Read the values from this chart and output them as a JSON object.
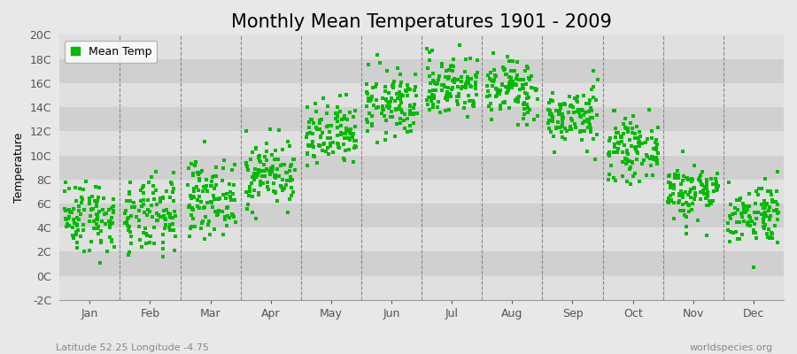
{
  "title": "Monthly Mean Temperatures 1901 - 2009",
  "ylabel": "Temperature",
  "xlabel_bottom_left": "Latitude 52.25 Longitude -4.75",
  "xlabel_bottom_right": "worldspecies.org",
  "legend_label": "Mean Temp",
  "dot_color": "#00bb00",
  "figure_bg_color": "#e8e8e8",
  "plot_bg_color": "#e0e0e0",
  "alt_row_color": "#d0d0d0",
  "dashed_line_color": "#888888",
  "ylim": [
    -2,
    20
  ],
  "yticks": [
    -2,
    0,
    2,
    4,
    6,
    8,
    10,
    12,
    14,
    16,
    18,
    20
  ],
  "ytick_labels": [
    "-2C",
    "0C",
    "2C",
    "4C",
    "6C",
    "8C",
    "10C",
    "12C",
    "14C",
    "16C",
    "18C",
    "20C"
  ],
  "month_names": [
    "Jan",
    "Feb",
    "Mar",
    "Apr",
    "May",
    "Jun",
    "Jul",
    "Aug",
    "Sep",
    "Oct",
    "Nov",
    "Dec"
  ],
  "monthly_means": [
    5.0,
    4.8,
    6.5,
    8.5,
    11.5,
    14.2,
    15.8,
    15.5,
    13.2,
    10.5,
    7.0,
    5.2
  ],
  "monthly_stds": [
    1.5,
    1.6,
    1.5,
    1.4,
    1.4,
    1.4,
    1.3,
    1.3,
    1.2,
    1.2,
    1.2,
    1.3
  ],
  "n_years": 109,
  "random_seed": 42,
  "marker_size": 8,
  "title_fontsize": 15,
  "axis_fontsize": 9,
  "tick_fontsize": 9,
  "legend_fontsize": 9
}
